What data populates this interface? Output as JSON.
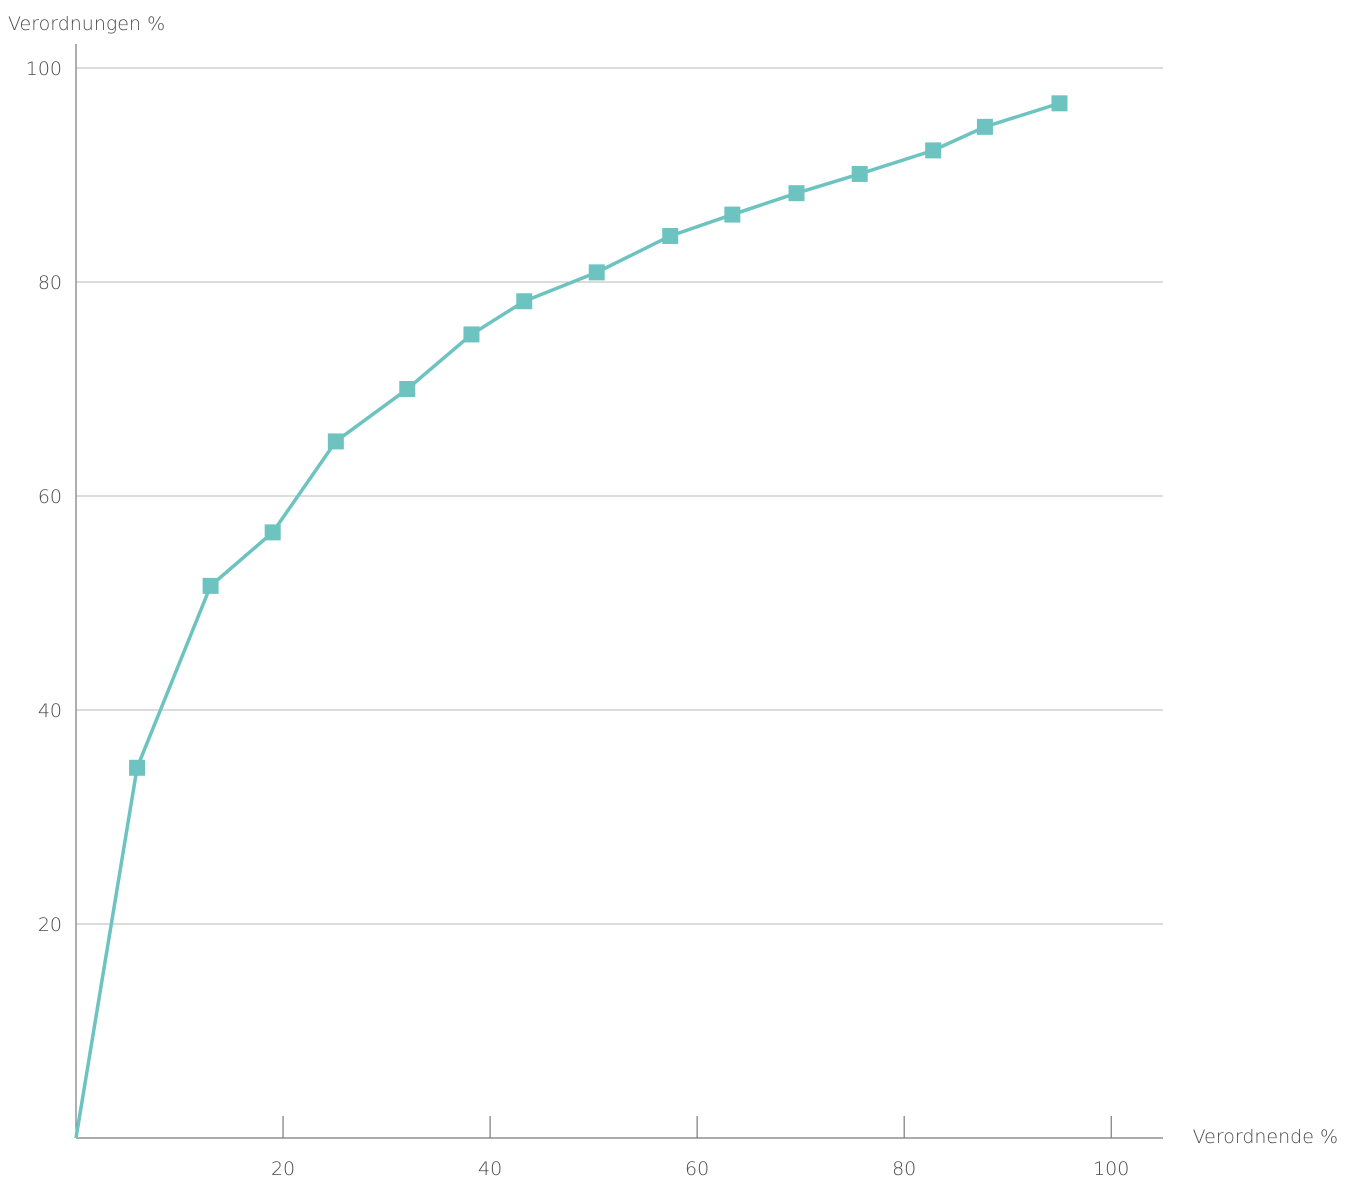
{
  "chart_data": {
    "type": "line",
    "title": "",
    "ylabel": "Verordnungen %",
    "xlabel": "Verordnende %",
    "xlim": [
      0,
      105
    ],
    "ylim": [
      0,
      100
    ],
    "x_ticks": [
      20,
      40,
      60,
      80,
      100
    ],
    "y_ticks": [
      20,
      40,
      60,
      80,
      100
    ],
    "grid": "horizontal",
    "legend": "none",
    "series": [
      {
        "color": "#6cc3c0",
        "marker": "square",
        "points": [
          {
            "x": 0,
            "y": 0
          },
          {
            "x": 5.9,
            "y": 34.6
          },
          {
            "x": 13,
            "y": 51.6
          },
          {
            "x": 19,
            "y": 56.6
          },
          {
            "x": 25.1,
            "y": 65.1
          },
          {
            "x": 32,
            "y": 70
          },
          {
            "x": 38.2,
            "y": 75.1
          },
          {
            "x": 43.3,
            "y": 78.2
          },
          {
            "x": 50.3,
            "y": 80.9
          },
          {
            "x": 57.4,
            "y": 84.3
          },
          {
            "x": 63.4,
            "y": 86.3
          },
          {
            "x": 69.6,
            "y": 88.3
          },
          {
            "x": 75.7,
            "y": 90.1
          },
          {
            "x": 82.8,
            "y": 92.3
          },
          {
            "x": 87.8,
            "y": 94.5
          },
          {
            "x": 95,
            "y": 96.7
          }
        ]
      }
    ]
  }
}
